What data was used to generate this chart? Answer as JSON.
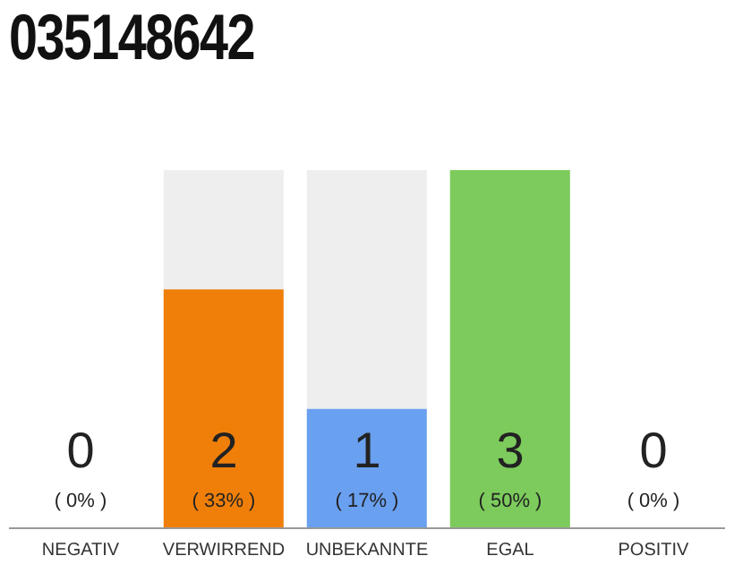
{
  "chart_data": {
    "type": "bar",
    "title": "035148642",
    "categories": [
      "NEGATIV",
      "VERWIRREND",
      "UNBEKANNTE",
      "EGAL",
      "POSITIV"
    ],
    "values": [
      0,
      2,
      1,
      3,
      0
    ],
    "colors": [
      "#cccccc",
      "#f07f09",
      "#6aa0f0",
      "#7ccb5c",
      "#cccccc"
    ],
    "value_labels": [
      "0\n( 0% )",
      "2\n( 33% )",
      "1\n( 17% )",
      "3\n( 50% )",
      "0\n( 0% )"
    ],
    "ylim": [
      0,
      3
    ],
    "tick_labels": "x"
  }
}
